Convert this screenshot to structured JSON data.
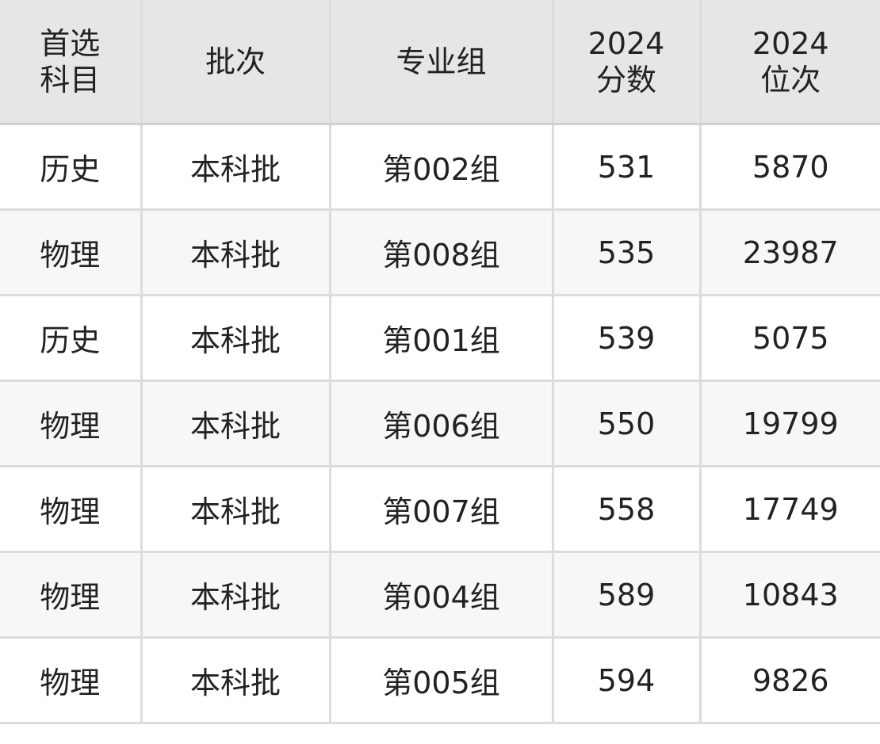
{
  "headers": [
    [
      "首选",
      "科目"
    ],
    [
      "批次"
    ],
    [
      "专业组"
    ],
    [
      "2024",
      "分数"
    ],
    [
      "2024",
      "位次"
    ]
  ],
  "rows": [
    [
      "历史",
      "本科批",
      "第002组",
      "531",
      "5870"
    ],
    [
      "物理",
      "本科批",
      "第008组",
      "535",
      "23987"
    ],
    [
      "历史",
      "本科批",
      "第001组",
      "539",
      "5075"
    ],
    [
      "物理",
      "本科批",
      "第006组",
      "550",
      "19799"
    ],
    [
      "物理",
      "本科批",
      "第007组",
      "558",
      "17749"
    ],
    [
      "物理",
      "本科批",
      "第004组",
      "589",
      "10843"
    ],
    [
      "物理",
      "本科批",
      "第005组",
      "594",
      "9826"
    ]
  ]
}
